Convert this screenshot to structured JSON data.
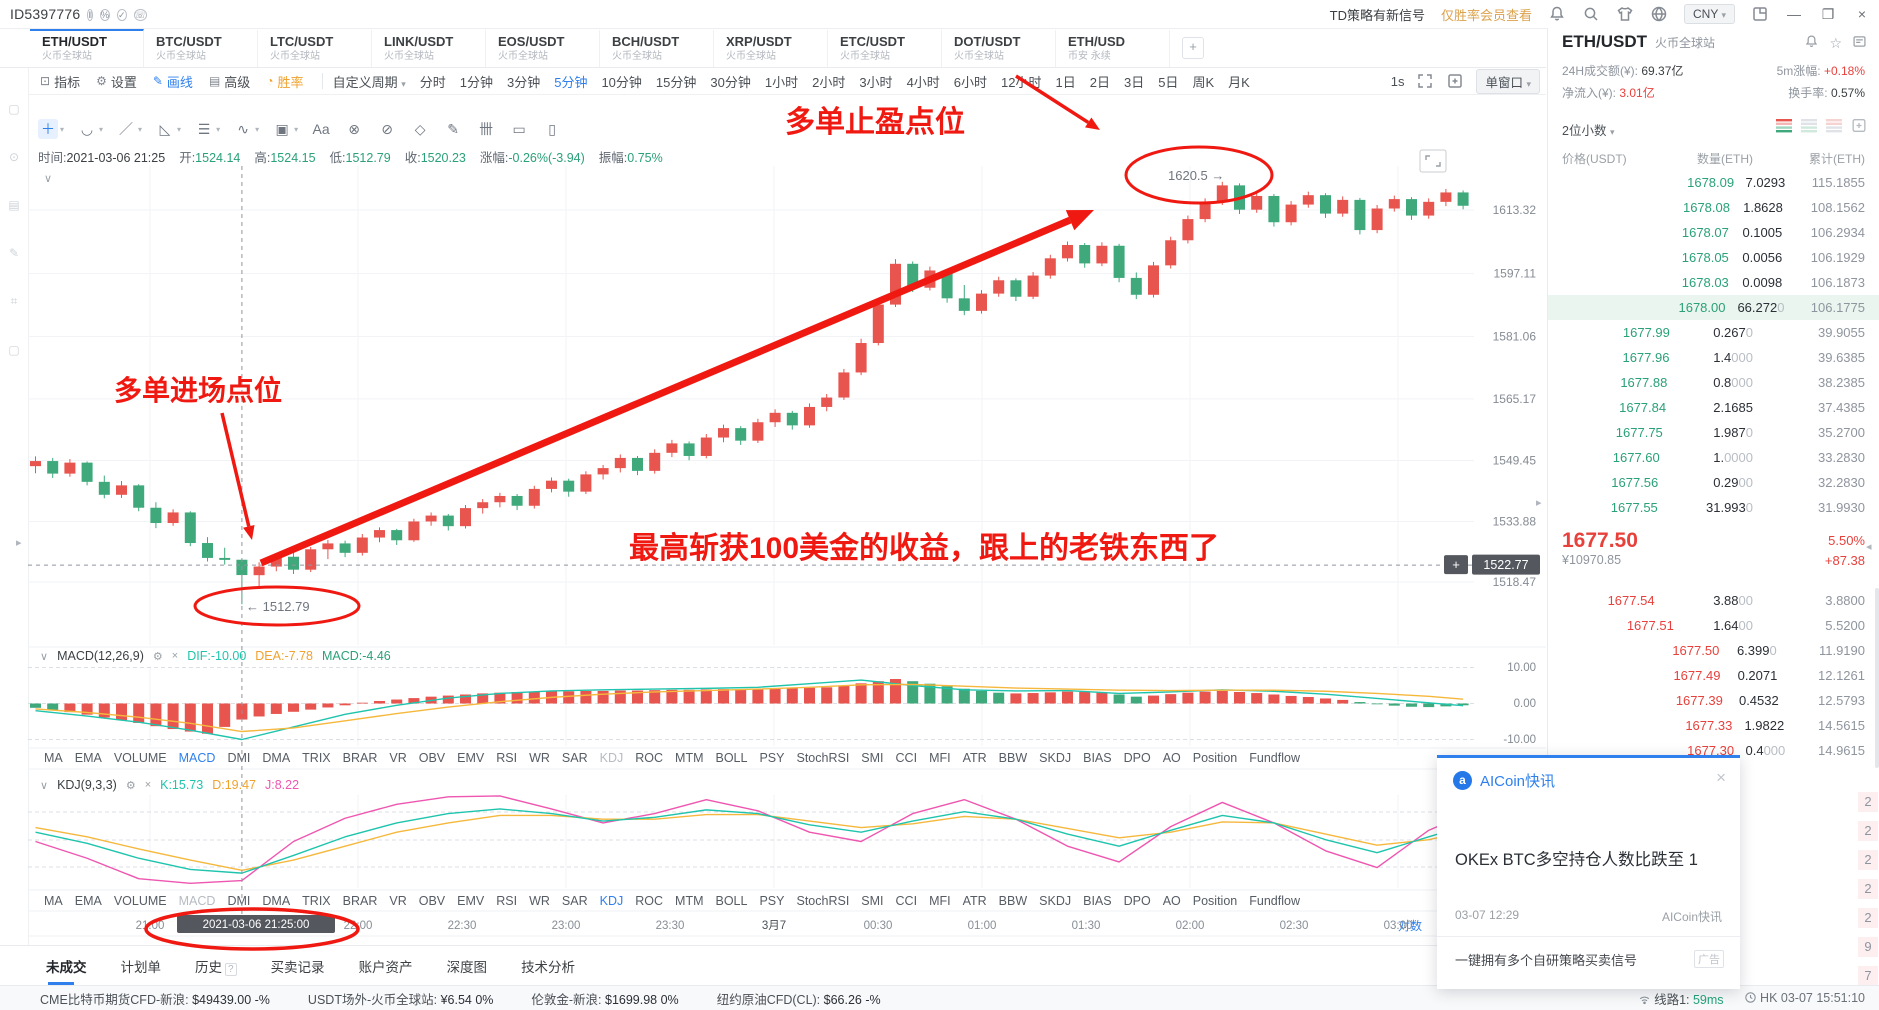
{
  "topbar": {
    "id": "ID5397776",
    "mini_icons": [
      "‖",
      "%",
      "✓",
      "☏"
    ],
    "signal": "TD策略有新信号",
    "signal_link": "仅胜率会员查看",
    "currency": "CNY"
  },
  "tabs": {
    "items": [
      {
        "pair": "ETH/USDT",
        "exchange": "火币全球站",
        "active": true
      },
      {
        "pair": "BTC/USDT",
        "exchange": "火币全球站"
      },
      {
        "pair": "LTC/USDT",
        "exchange": "火币全球站"
      },
      {
        "pair": "LINK/USDT",
        "exchange": "火币全球站"
      },
      {
        "pair": "EOS/USDT",
        "exchange": "火币全球站"
      },
      {
        "pair": "BCH/USDT",
        "exchange": "火币全球站"
      },
      {
        "pair": "XRP/USDT",
        "exchange": "火币全球站"
      },
      {
        "pair": "ETC/USDT",
        "exchange": "火币全球站"
      },
      {
        "pair": "DOT/USDT",
        "exchange": "火币全球站"
      },
      {
        "pair": "ETH/USD",
        "exchange": "币安 永续"
      }
    ],
    "add": "+"
  },
  "toolbar": {
    "buttons": [
      {
        "label": "指标",
        "glyph": "⊡"
      },
      {
        "label": "设置",
        "glyph": "⚙"
      },
      {
        "label": "画线",
        "glyph": "✎",
        "cls": "blue"
      },
      {
        "label": "高级",
        "glyph": "▤"
      },
      {
        "label": "胜率",
        "glyph": "◔",
        "cls": "orange"
      }
    ],
    "custom_period": "自定义周期",
    "periods": [
      "分时",
      "1分钟",
      "3分钟",
      "5分钟",
      "10分钟",
      "15分钟",
      "30分钟",
      "1小时",
      "2小时",
      "3小时",
      "4小时",
      "6小时",
      "12小时",
      "1日",
      "2日",
      "3日",
      "5日",
      "周K",
      "月K"
    ],
    "active_period": "5分钟",
    "seconds": "1s",
    "window_mode": "单窗口"
  },
  "drawbar": {
    "tools": [
      {
        "name": "crosshair-tool",
        "glyph": "＋",
        "active": true,
        "caret": true
      },
      {
        "name": "arc-tool",
        "glyph": "◡",
        "caret": true
      },
      {
        "name": "trendline-tool",
        "glyph": "／",
        "caret": true
      },
      {
        "name": "triangle-tool",
        "glyph": "◺",
        "caret": true
      },
      {
        "name": "channel-tool",
        "glyph": "☰",
        "caret": true
      },
      {
        "name": "wave-tool",
        "glyph": "∿",
        "caret": true
      },
      {
        "name": "shape-tool",
        "glyph": "▣",
        "caret": true
      },
      {
        "name": "text-tool",
        "glyph": "Aa"
      },
      {
        "name": "eraser-tool",
        "glyph": "⊗"
      },
      {
        "name": "magnet-tool",
        "glyph": "⊘"
      },
      {
        "name": "ruler-tool",
        "glyph": "◇"
      },
      {
        "name": "pencil-tool",
        "glyph": "✎"
      },
      {
        "name": "gann-tool",
        "glyph": "卌"
      },
      {
        "name": "clear-tool",
        "glyph": "▭"
      },
      {
        "name": "snapshot-tool",
        "glyph": "▯"
      }
    ]
  },
  "ohlc": {
    "time": {
      "label": "时间:",
      "value": "2021-03-06 21:25"
    },
    "open": {
      "label": "开:",
      "value": "1524.14"
    },
    "high": {
      "label": "高:",
      "value": "1524.15"
    },
    "low": {
      "label": "低:",
      "value": "1512.79"
    },
    "close": {
      "label": "收:",
      "value": "1520.23"
    },
    "change": {
      "label": "涨幅:",
      "value": "-0.26%(-3.94)"
    },
    "amplitude": {
      "label": "振幅:",
      "value": "0.75%"
    }
  },
  "macd": {
    "title": "MACD(12,26,9)",
    "dif": "DIF:-10.00",
    "dea": "DEA:-7.78",
    "macd": "MACD:-4.46",
    "axis": [
      "10.00",
      "0.00",
      "-10.00"
    ],
    "hist": [
      -1.2,
      -1.8,
      -2.4,
      -3.1,
      -3.9,
      -4.6,
      -5.4,
      -6.3,
      -7.1,
      -7.8,
      -8.4,
      -6.5,
      -4.46,
      -3.6,
      -2.9,
      -2.3,
      -1.7,
      -1.1,
      -0.5,
      0.2,
      0.7,
      1.1,
      1.5,
      1.9,
      2.2,
      2.5,
      2.8,
      3.0,
      3.2,
      3.3,
      3.4,
      3.4,
      3.5,
      3.5,
      3.6,
      3.6,
      3.7,
      3.8,
      3.8,
      3.9,
      4.0,
      4.0,
      4.1,
      4.2,
      4.3,
      4.4,
      4.5,
      5.0,
      5.6,
      6.2,
      6.8,
      6.2,
      5.5,
      4.8,
      4.1,
      3.5,
      3.0,
      2.8,
      2.9,
      3.1,
      3.3,
      3.2,
      3.1,
      2.5,
      1.9,
      2.2,
      2.6,
      3.0,
      3.3,
      3.5,
      3.2,
      2.9,
      2.5,
      2.1,
      1.8,
      1.4,
      1.0,
      0.4,
      -0.2,
      -0.6,
      -0.9,
      -1.0,
      -0.8,
      -0.5
    ],
    "hist_colors": "ggrrrrrrrrrrrrrrrrrrrrrrrrrrrrrrrrrrrrrrrrrrrrrrrrrggggggrrrrrrggrrrrrrrrrrrrggggggg",
    "dif_pts": [
      -2,
      -3.5,
      -5.2,
      -7.4,
      -10,
      -6.5,
      -3,
      -0.5,
      1.5,
      2.8,
      3.5,
      3.8,
      4,
      4.2,
      4.5,
      5.5,
      6.5,
      5,
      3.8,
      3.5,
      3.6,
      2.8,
      3.2,
      3.8,
      3.4,
      2.6,
      1.4,
      0.2,
      -0.6
    ],
    "dea_pts": [
      -1.5,
      -2.5,
      -3.8,
      -5.5,
      -7.78,
      -6.8,
      -4.8,
      -2.8,
      -1,
      0.5,
      1.7,
      2.6,
      3.2,
      3.6,
      4,
      4.5,
      5.2,
      5.3,
      4.8,
      4.3,
      4,
      3.7,
      3.6,
      3.7,
      3.7,
      3.4,
      2.8,
      2,
      1.2
    ]
  },
  "kdj": {
    "title": "KDJ(9,3,3)",
    "k": "K:15.73",
    "d": "D:19.47",
    "j": "J:8.22",
    "k_pts": [
      60,
      48,
      32,
      20,
      16,
      35,
      55,
      70,
      80,
      85,
      80,
      72,
      76,
      84,
      80,
      68,
      60,
      72,
      82,
      74,
      58,
      45,
      62,
      78,
      70,
      52,
      38,
      55,
      66
    ],
    "d_pts": [
      65,
      55,
      42,
      30,
      19,
      30,
      45,
      60,
      70,
      78,
      78,
      74,
      74,
      79,
      79,
      72,
      65,
      69,
      77,
      74,
      64,
      54,
      60,
      71,
      70,
      58,
      46,
      52,
      60
    ],
    "j_pts": [
      50,
      32,
      10,
      5,
      8,
      50,
      75,
      90,
      98,
      99,
      85,
      70,
      80,
      95,
      83,
      60,
      50,
      80,
      95,
      74,
      45,
      28,
      66,
      92,
      70,
      40,
      22,
      62,
      78
    ]
  },
  "indicators": {
    "list": [
      "MA",
      "EMA",
      "VOLUME",
      "MACD",
      "DMI",
      "DMA",
      "TRIX",
      "BRAR",
      "VR",
      "OBV",
      "EMV",
      "RSI",
      "WR",
      "SAR",
      "KDJ",
      "ROC",
      "MTM",
      "BOLL",
      "PSY",
      "StochRSI",
      "SMI",
      "CCI",
      "MFI",
      "ATR",
      "BBW",
      "SKDJ",
      "BIAS",
      "DPO",
      "AO",
      "Position",
      "Fundflow"
    ],
    "row1": {
      "active": "MACD",
      "dim": "KDJ"
    },
    "row2": {
      "active": "KDJ",
      "dim": "MACD"
    }
  },
  "chart_data": {
    "type": "candlestick",
    "symbol": "ETH/USDT",
    "exchange": "火币全球站",
    "interval": "5分钟",
    "colors": {
      "up": "#e8544e",
      "down": "#3fa97c"
    },
    "price_axis": [
      "1613.32",
      "1597.11",
      "1581.06",
      "1565.17",
      "1549.45",
      "1533.88",
      "1518.47"
    ],
    "time_ticks": [
      [
        "21:00",
        150
      ],
      [
        "22:00",
        358
      ],
      [
        "22:30",
        462
      ],
      [
        "23:00",
        566
      ],
      [
        "23:30",
        670
      ],
      [
        "3月7",
        774
      ],
      [
        "00:30",
        878
      ],
      [
        "01:00",
        982
      ],
      [
        "01:30",
        1086
      ],
      [
        "02:00",
        1190
      ],
      [
        "02:30",
        1294
      ],
      [
        "03:00",
        1398
      ]
    ],
    "grid_hours": [
      150,
      358,
      566,
      774,
      982,
      1190,
      1398
    ],
    "crosshair": {
      "index": 12,
      "price": 1522.77,
      "price_label": "1522.77",
      "time_label": "2021-03-06 21:25:00",
      "plus": "+"
    },
    "candles": [
      [
        1548.0,
        1550.5,
        1546.2,
        1549.3
      ],
      [
        1549.3,
        1550.1,
        1545.0,
        1546.1
      ],
      [
        1546.1,
        1549.8,
        1545.3,
        1548.9
      ],
      [
        1548.9,
        1549.2,
        1543.1,
        1544.0
      ],
      [
        1544.0,
        1545.6,
        1539.8,
        1540.7
      ],
      [
        1540.7,
        1544.2,
        1539.9,
        1543.1
      ],
      [
        1543.1,
        1543.4,
        1536.5,
        1537.4
      ],
      [
        1537.4,
        1538.8,
        1532.2,
        1533.5
      ],
      [
        1533.5,
        1537.0,
        1532.8,
        1536.2
      ],
      [
        1536.2,
        1536.5,
        1527.6,
        1528.4
      ],
      [
        1528.4,
        1529.9,
        1523.7,
        1524.6
      ],
      [
        1524.6,
        1527.2,
        1522.9,
        1524.1
      ],
      [
        1524.14,
        1524.15,
        1512.79,
        1520.23
      ],
      [
        1520.2,
        1523.5,
        1517.0,
        1522.4
      ],
      [
        1522.4,
        1525.8,
        1521.2,
        1524.9
      ],
      [
        1524.9,
        1526.3,
        1520.5,
        1521.6
      ],
      [
        1521.6,
        1527.4,
        1521.0,
        1526.8
      ],
      [
        1526.8,
        1529.2,
        1524.3,
        1528.3
      ],
      [
        1528.3,
        1529.0,
        1524.8,
        1525.9
      ],
      [
        1525.9,
        1530.7,
        1525.2,
        1529.8
      ],
      [
        1529.8,
        1532.4,
        1528.6,
        1531.7
      ],
      [
        1531.7,
        1532.0,
        1527.9,
        1529.1
      ],
      [
        1529.1,
        1534.6,
        1528.7,
        1533.9
      ],
      [
        1533.9,
        1536.2,
        1532.8,
        1535.4
      ],
      [
        1535.4,
        1535.8,
        1531.6,
        1532.7
      ],
      [
        1532.7,
        1538.1,
        1532.1,
        1537.3
      ],
      [
        1537.3,
        1539.6,
        1535.9,
        1538.8
      ],
      [
        1538.8,
        1541.2,
        1537.5,
        1540.4
      ],
      [
        1540.4,
        1540.9,
        1536.8,
        1537.9
      ],
      [
        1537.9,
        1543.0,
        1537.2,
        1542.2
      ],
      [
        1542.2,
        1545.1,
        1541.3,
        1544.3
      ],
      [
        1544.3,
        1544.8,
        1540.2,
        1541.5
      ],
      [
        1541.5,
        1546.7,
        1540.9,
        1545.9
      ],
      [
        1545.9,
        1548.3,
        1544.6,
        1547.5
      ],
      [
        1547.5,
        1551.0,
        1546.4,
        1550.1
      ],
      [
        1550.1,
        1550.6,
        1545.7,
        1546.8
      ],
      [
        1546.8,
        1552.3,
        1546.1,
        1551.4
      ],
      [
        1551.4,
        1554.7,
        1550.3,
        1553.8
      ],
      [
        1553.8,
        1554.3,
        1549.5,
        1550.6
      ],
      [
        1550.6,
        1556.2,
        1550.0,
        1555.3
      ],
      [
        1555.3,
        1558.6,
        1554.1,
        1557.7
      ],
      [
        1557.7,
        1558.2,
        1553.4,
        1554.5
      ],
      [
        1554.5,
        1560.1,
        1553.9,
        1559.2
      ],
      [
        1559.2,
        1562.5,
        1558.0,
        1561.6
      ],
      [
        1561.6,
        1562.1,
        1557.3,
        1558.4
      ],
      [
        1558.4,
        1564.0,
        1557.8,
        1563.1
      ],
      [
        1563.1,
        1566.4,
        1562.0,
        1565.5
      ],
      [
        1565.5,
        1572.8,
        1564.9,
        1571.9
      ],
      [
        1571.9,
        1580.5,
        1571.2,
        1579.4
      ],
      [
        1579.4,
        1590.3,
        1578.8,
        1589.2
      ],
      [
        1589.2,
        1600.8,
        1588.6,
        1599.6
      ],
      [
        1599.6,
        1600.2,
        1592.4,
        1593.5
      ],
      [
        1593.5,
        1598.9,
        1592.8,
        1597.9
      ],
      [
        1597.9,
        1598.4,
        1589.7,
        1590.8
      ],
      [
        1590.8,
        1594.2,
        1586.5,
        1587.6
      ],
      [
        1587.6,
        1592.9,
        1586.9,
        1592.0
      ],
      [
        1592.0,
        1596.3,
        1591.2,
        1595.4
      ],
      [
        1595.4,
        1595.9,
        1590.1,
        1591.2
      ],
      [
        1591.2,
        1597.5,
        1590.6,
        1596.6
      ],
      [
        1596.6,
        1601.9,
        1595.8,
        1601.0
      ],
      [
        1601.0,
        1605.3,
        1600.2,
        1604.4
      ],
      [
        1604.4,
        1604.9,
        1598.6,
        1599.7
      ],
      [
        1599.7,
        1605.1,
        1599.0,
        1604.2
      ],
      [
        1604.2,
        1604.7,
        1594.9,
        1596.0
      ],
      [
        1596.0,
        1597.4,
        1590.6,
        1591.7
      ],
      [
        1591.7,
        1600.1,
        1591.0,
        1599.2
      ],
      [
        1599.2,
        1606.5,
        1598.4,
        1605.6
      ],
      [
        1605.6,
        1611.9,
        1604.8,
        1611.0
      ],
      [
        1611.0,
        1616.3,
        1610.2,
        1615.4
      ],
      [
        1615.4,
        1620.5,
        1614.6,
        1619.6
      ],
      [
        1619.6,
        1620.1,
        1612.3,
        1613.4
      ],
      [
        1613.4,
        1617.8,
        1612.6,
        1616.9
      ],
      [
        1616.9,
        1617.4,
        1609.1,
        1610.2
      ],
      [
        1610.2,
        1615.6,
        1609.4,
        1614.7
      ],
      [
        1614.7,
        1618.0,
        1613.9,
        1617.1
      ],
      [
        1617.1,
        1617.6,
        1611.3,
        1612.4
      ],
      [
        1612.4,
        1616.8,
        1611.6,
        1615.9
      ],
      [
        1615.9,
        1616.4,
        1607.1,
        1608.2
      ],
      [
        1608.2,
        1614.6,
        1607.4,
        1613.7
      ],
      [
        1613.7,
        1617.0,
        1612.9,
        1616.1
      ],
      [
        1616.1,
        1616.6,
        1610.8,
        1611.9
      ],
      [
        1611.9,
        1616.3,
        1611.1,
        1615.4
      ],
      [
        1615.4,
        1618.7,
        1614.3,
        1617.8
      ],
      [
        1617.8,
        1618.3,
        1613.5,
        1614.4
      ]
    ]
  },
  "log_label": "对数",
  "annotations": {
    "entry_text": "多单进场点位",
    "tp_text": "多单止盈点位",
    "profit_text": "最高斩获100美金的收益，跟上的老铁东西了",
    "low_marker": "← 1512.79",
    "high_marker": "1620.5 →",
    "color": "#f01911"
  },
  "orderbook": {
    "stats": {
      "turnover_label": "24H成交额(¥):",
      "turnover": "69.37亿",
      "chg5m_label": "5m涨幅:",
      "chg5m": "+0.18%",
      "inflow_label": "净流入(¥):",
      "inflow": "3.01亿",
      "rate_label": "换手率:",
      "rate": "0.57%"
    },
    "decimals": "2位小数",
    "columns": [
      "价格(USDT)",
      "数量(ETH)",
      "累计(ETH)"
    ],
    "asks": [
      [
        "1678.09",
        "7.0293",
        "115.1855"
      ],
      [
        "1678.08",
        "1.8628",
        "108.1562"
      ],
      [
        "1678.07",
        "0.1005",
        "106.2934"
      ],
      [
        "1678.05",
        "0.0056",
        "106.1929"
      ],
      [
        "1678.03",
        "0.0098",
        "106.1873"
      ],
      [
        "1678.00",
        "66.2720",
        "106.1775"
      ],
      [
        "1677.99",
        "0.2670",
        "39.9055"
      ],
      [
        "1677.96",
        "1.4000",
        "39.6385"
      ],
      [
        "1677.88",
        "0.8000",
        "38.2385"
      ],
      [
        "1677.84",
        "2.1685",
        "37.4385"
      ],
      [
        "1677.75",
        "1.9870",
        "35.2700"
      ],
      [
        "1677.60",
        "1.0000",
        "33.2830"
      ],
      [
        "1677.56",
        "0.2900",
        "32.2830"
      ],
      [
        "1677.55",
        "31.9930",
        "31.9930"
      ]
    ],
    "highlight_ask": 5,
    "last": {
      "price": "1677.50",
      "pct": "5.50%",
      "cny": "¥10970.85",
      "change": "+87.38"
    },
    "bids": [
      [
        "1677.54",
        "3.8800",
        "3.8800"
      ],
      [
        "1677.51",
        "1.6400",
        "5.5200"
      ],
      [
        "1677.50",
        "6.3990",
        "11.9190"
      ],
      [
        "1677.49",
        "0.2071",
        "12.1261"
      ],
      [
        "1677.39",
        "0.4532",
        "12.5793"
      ],
      [
        "1677.33",
        "1.9822",
        "14.5615"
      ],
      [
        "1677.30",
        "0.4000",
        "14.9615"
      ]
    ],
    "peek_digits": [
      "2",
      "2",
      "2",
      "2",
      "2",
      "9",
      "7"
    ]
  },
  "panel_header": {
    "pair": "ETH/USDT",
    "exchange": "火币全球站"
  },
  "news": {
    "title": "AICoin快讯",
    "logo": "a",
    "headline": "OKEx BTC多空持仓人数比跌至 1",
    "time": "03-07 12:29",
    "source": "AICoin快讯",
    "promo": "一键拥有多个自研策略买卖信号",
    "ad": "广告"
  },
  "footer": {
    "tabs": [
      "未成交",
      "计划单",
      "历史",
      "买卖记录",
      "账户资产",
      "深度图",
      "技术分析"
    ],
    "active": "未成交"
  },
  "statusbar": {
    "items": [
      {
        "label": "CME比特币期货CFD-新浪:",
        "value": "$49439.00 -%"
      },
      {
        "label": "USDT场外-火币全球站:",
        "value": "¥6.54 0%"
      },
      {
        "label": "伦敦金-新浪:",
        "value": "$1699.98 0%"
      },
      {
        "label": "纽约原油CFD(CL):",
        "value": "$66.26 -%"
      }
    ],
    "line_label": "线路1:",
    "latency": "59ms",
    "clock": "HK 03-07 15:51:10"
  }
}
